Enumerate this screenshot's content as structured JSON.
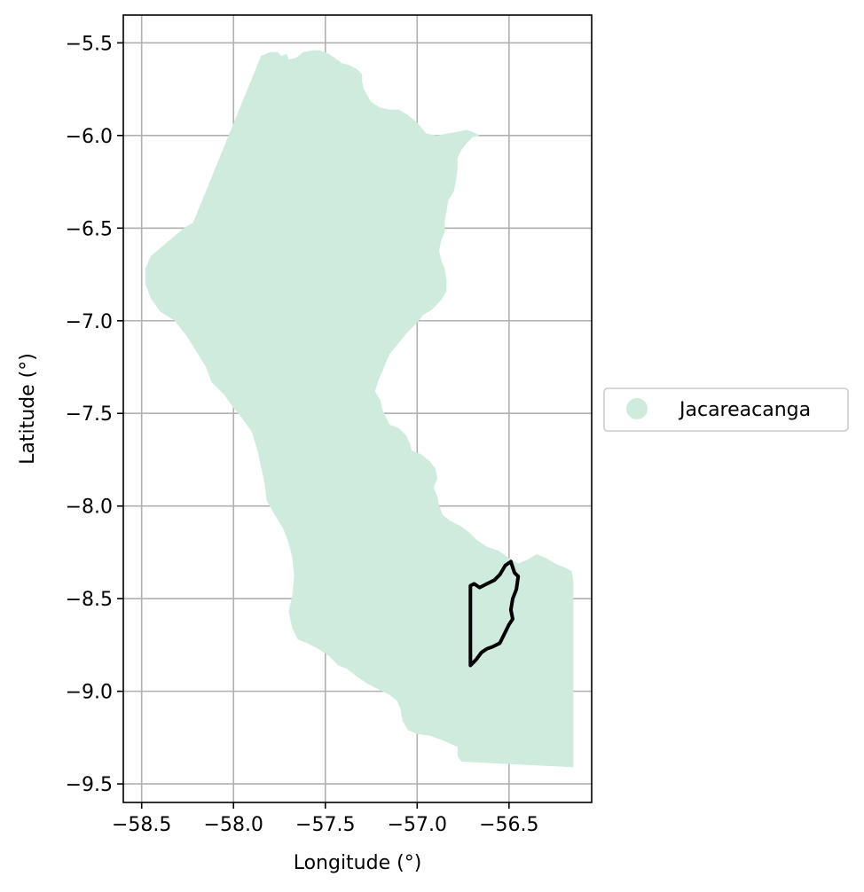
{
  "chart_data": {
    "type": "map",
    "xlabel": "Longitude (°)",
    "ylabel": "Latitude (°)",
    "xlim": [
      -58.6,
      -56.05
    ],
    "ylim": [
      -9.6,
      -5.35
    ],
    "grid": true,
    "x_ticks": [
      -58.5,
      -58.0,
      -57.5,
      -57.0,
      -56.5
    ],
    "x_tick_labels": [
      "−58.5",
      "−58.0",
      "−57.5",
      "−57.0",
      "−56.5"
    ],
    "y_ticks": [
      -5.5,
      -6.0,
      -6.5,
      -7.0,
      -7.5,
      -8.0,
      -8.5,
      -9.0,
      -9.5
    ],
    "y_tick_labels": [
      "−5.5",
      "−6.0",
      "−6.5",
      "−7.0",
      "−7.5",
      "−8.0",
      "−8.5",
      "−9.0",
      "−9.5"
    ],
    "legend": {
      "position": "right",
      "entries": [
        {
          "label": "Jacareacanga",
          "color": "#cfebde",
          "marker": "circle"
        }
      ]
    },
    "regions": [
      {
        "name": "Jacareacanga",
        "fill": "#cfebde",
        "coords": [
          [
            -57.85,
            -5.57
          ],
          [
            -57.8,
            -5.55
          ],
          [
            -57.76,
            -5.55
          ],
          [
            -57.74,
            -5.57
          ],
          [
            -57.71,
            -5.56
          ],
          [
            -57.7,
            -5.59
          ],
          [
            -57.66,
            -5.58
          ],
          [
            -57.62,
            -5.55
          ],
          [
            -57.57,
            -5.54
          ],
          [
            -57.53,
            -5.54
          ],
          [
            -57.48,
            -5.56
          ],
          [
            -57.45,
            -5.58
          ],
          [
            -57.41,
            -5.61
          ],
          [
            -57.37,
            -5.62
          ],
          [
            -57.33,
            -5.64
          ],
          [
            -57.3,
            -5.67
          ],
          [
            -57.3,
            -5.71
          ],
          [
            -57.29,
            -5.75
          ],
          [
            -57.25,
            -5.82
          ],
          [
            -57.2,
            -5.85
          ],
          [
            -57.15,
            -5.86
          ],
          [
            -57.1,
            -5.86
          ],
          [
            -57.05,
            -5.89
          ],
          [
            -57.0,
            -5.93
          ],
          [
            -56.95,
            -5.99
          ],
          [
            -56.89,
            -6.0
          ],
          [
            -56.84,
            -5.99
          ],
          [
            -56.78,
            -5.98
          ],
          [
            -56.73,
            -5.97
          ],
          [
            -56.7,
            -5.98
          ],
          [
            -56.66,
            -6.0
          ],
          [
            -56.7,
            -6.01
          ],
          [
            -56.73,
            -6.04
          ],
          [
            -56.76,
            -6.08
          ],
          [
            -56.78,
            -6.12
          ],
          [
            -56.78,
            -6.18
          ],
          [
            -56.79,
            -6.25
          ],
          [
            -56.8,
            -6.3
          ],
          [
            -56.83,
            -6.35
          ],
          [
            -56.84,
            -6.41
          ],
          [
            -56.85,
            -6.46
          ],
          [
            -56.85,
            -6.52
          ],
          [
            -56.87,
            -6.57
          ],
          [
            -56.88,
            -6.62
          ],
          [
            -56.87,
            -6.67
          ],
          [
            -56.85,
            -6.72
          ],
          [
            -56.84,
            -6.78
          ],
          [
            -56.84,
            -6.84
          ],
          [
            -56.87,
            -6.89
          ],
          [
            -56.92,
            -6.94
          ],
          [
            -56.97,
            -6.97
          ],
          [
            -57.0,
            -7.01
          ],
          [
            -57.06,
            -7.07
          ],
          [
            -57.1,
            -7.12
          ],
          [
            -57.15,
            -7.18
          ],
          [
            -57.18,
            -7.25
          ],
          [
            -57.21,
            -7.32
          ],
          [
            -57.23,
            -7.38
          ],
          [
            -57.2,
            -7.43
          ],
          [
            -57.19,
            -7.48
          ],
          [
            -57.17,
            -7.52
          ],
          [
            -57.15,
            -7.56
          ],
          [
            -57.1,
            -7.58
          ],
          [
            -57.06,
            -7.62
          ],
          [
            -57.04,
            -7.66
          ],
          [
            -57.03,
            -7.7
          ],
          [
            -56.98,
            -7.72
          ],
          [
            -56.93,
            -7.76
          ],
          [
            -56.9,
            -7.8
          ],
          [
            -56.89,
            -7.85
          ],
          [
            -56.91,
            -7.9
          ],
          [
            -56.89,
            -7.95
          ],
          [
            -56.88,
            -8.0
          ],
          [
            -56.86,
            -8.05
          ],
          [
            -56.82,
            -8.08
          ],
          [
            -56.76,
            -8.11
          ],
          [
            -56.72,
            -8.14
          ],
          [
            -56.68,
            -8.18
          ],
          [
            -56.62,
            -8.22
          ],
          [
            -56.56,
            -8.24
          ],
          [
            -56.5,
            -8.28
          ],
          [
            -56.45,
            -8.31
          ],
          [
            -56.4,
            -8.29
          ],
          [
            -56.35,
            -8.26
          ],
          [
            -56.3,
            -8.28
          ],
          [
            -56.25,
            -8.31
          ],
          [
            -56.2,
            -8.33
          ],
          [
            -56.16,
            -8.35
          ],
          [
            -56.15,
            -8.4
          ],
          [
            -56.15,
            -9.41
          ],
          [
            -56.76,
            -9.38
          ],
          [
            -56.78,
            -9.35
          ],
          [
            -56.78,
            -9.3
          ],
          [
            -56.85,
            -9.27
          ],
          [
            -56.93,
            -9.24
          ],
          [
            -57.0,
            -9.23
          ],
          [
            -57.05,
            -9.21
          ],
          [
            -57.08,
            -9.16
          ],
          [
            -57.09,
            -9.1
          ],
          [
            -57.11,
            -9.05
          ],
          [
            -57.15,
            -9.02
          ],
          [
            -57.21,
            -8.99
          ],
          [
            -57.27,
            -8.96
          ],
          [
            -57.33,
            -8.92
          ],
          [
            -57.38,
            -8.88
          ],
          [
            -57.43,
            -8.86
          ],
          [
            -57.48,
            -8.81
          ],
          [
            -57.54,
            -8.77
          ],
          [
            -57.6,
            -8.74
          ],
          [
            -57.65,
            -8.72
          ],
          [
            -57.68,
            -8.66
          ],
          [
            -57.7,
            -8.57
          ],
          [
            -57.68,
            -8.48
          ],
          [
            -57.67,
            -8.38
          ],
          [
            -57.68,
            -8.28
          ],
          [
            -57.7,
            -8.2
          ],
          [
            -57.73,
            -8.12
          ],
          [
            -57.78,
            -8.04
          ],
          [
            -57.82,
            -7.97
          ],
          [
            -57.83,
            -7.88
          ],
          [
            -57.85,
            -7.79
          ],
          [
            -57.87,
            -7.7
          ],
          [
            -57.9,
            -7.6
          ],
          [
            -57.95,
            -7.53
          ],
          [
            -58.0,
            -7.47
          ],
          [
            -58.05,
            -7.4
          ],
          [
            -58.12,
            -7.33
          ],
          [
            -58.15,
            -7.25
          ],
          [
            -58.2,
            -7.17
          ],
          [
            -58.25,
            -7.09
          ],
          [
            -58.32,
            -7.0
          ],
          [
            -58.4,
            -6.95
          ],
          [
            -58.45,
            -6.88
          ],
          [
            -58.48,
            -6.8
          ],
          [
            -58.48,
            -6.72
          ],
          [
            -58.45,
            -6.65
          ],
          [
            -58.39,
            -6.6
          ],
          [
            -58.33,
            -6.55
          ],
          [
            -58.27,
            -6.5
          ],
          [
            -58.22,
            -6.47
          ]
        ]
      }
    ],
    "highlight_outline": {
      "color": "#000000",
      "coords": [
        [
          -56.71,
          -8.43
        ],
        [
          -56.69,
          -8.42
        ],
        [
          -56.66,
          -8.44
        ],
        [
          -56.62,
          -8.42
        ],
        [
          -56.58,
          -8.4
        ],
        [
          -56.55,
          -8.37
        ],
        [
          -56.52,
          -8.32
        ],
        [
          -56.49,
          -8.3
        ],
        [
          -56.47,
          -8.36
        ],
        [
          -56.45,
          -8.38
        ],
        [
          -56.46,
          -8.45
        ],
        [
          -56.48,
          -8.5
        ],
        [
          -56.49,
          -8.56
        ],
        [
          -56.48,
          -8.61
        ],
        [
          -56.5,
          -8.64
        ],
        [
          -56.53,
          -8.7
        ],
        [
          -56.55,
          -8.74
        ],
        [
          -56.59,
          -8.76
        ],
        [
          -56.62,
          -8.77
        ],
        [
          -56.65,
          -8.79
        ],
        [
          -56.68,
          -8.83
        ],
        [
          -56.71,
          -8.86
        ]
      ]
    }
  }
}
